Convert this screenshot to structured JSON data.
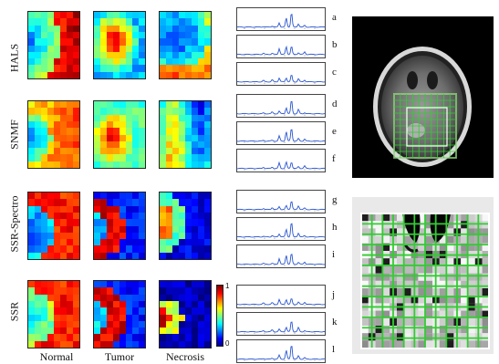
{
  "rows": [
    {
      "label": "HALS"
    },
    {
      "label": "SNMF"
    },
    {
      "label": "SSR-Spectro"
    },
    {
      "label": "SSR"
    }
  ],
  "columns": [
    "Normal",
    "Tumor",
    "Necrosis"
  ],
  "spectrum_letters": [
    "a",
    "b",
    "c",
    "d",
    "e",
    "f",
    "g",
    "h",
    "i",
    "j",
    "k",
    "l"
  ],
  "colorbar": {
    "max": "1",
    "min": "0"
  },
  "colors": {
    "grid_green": "#33cc33",
    "jet_low": "#00008f",
    "jet_high": "#800000"
  }
}
